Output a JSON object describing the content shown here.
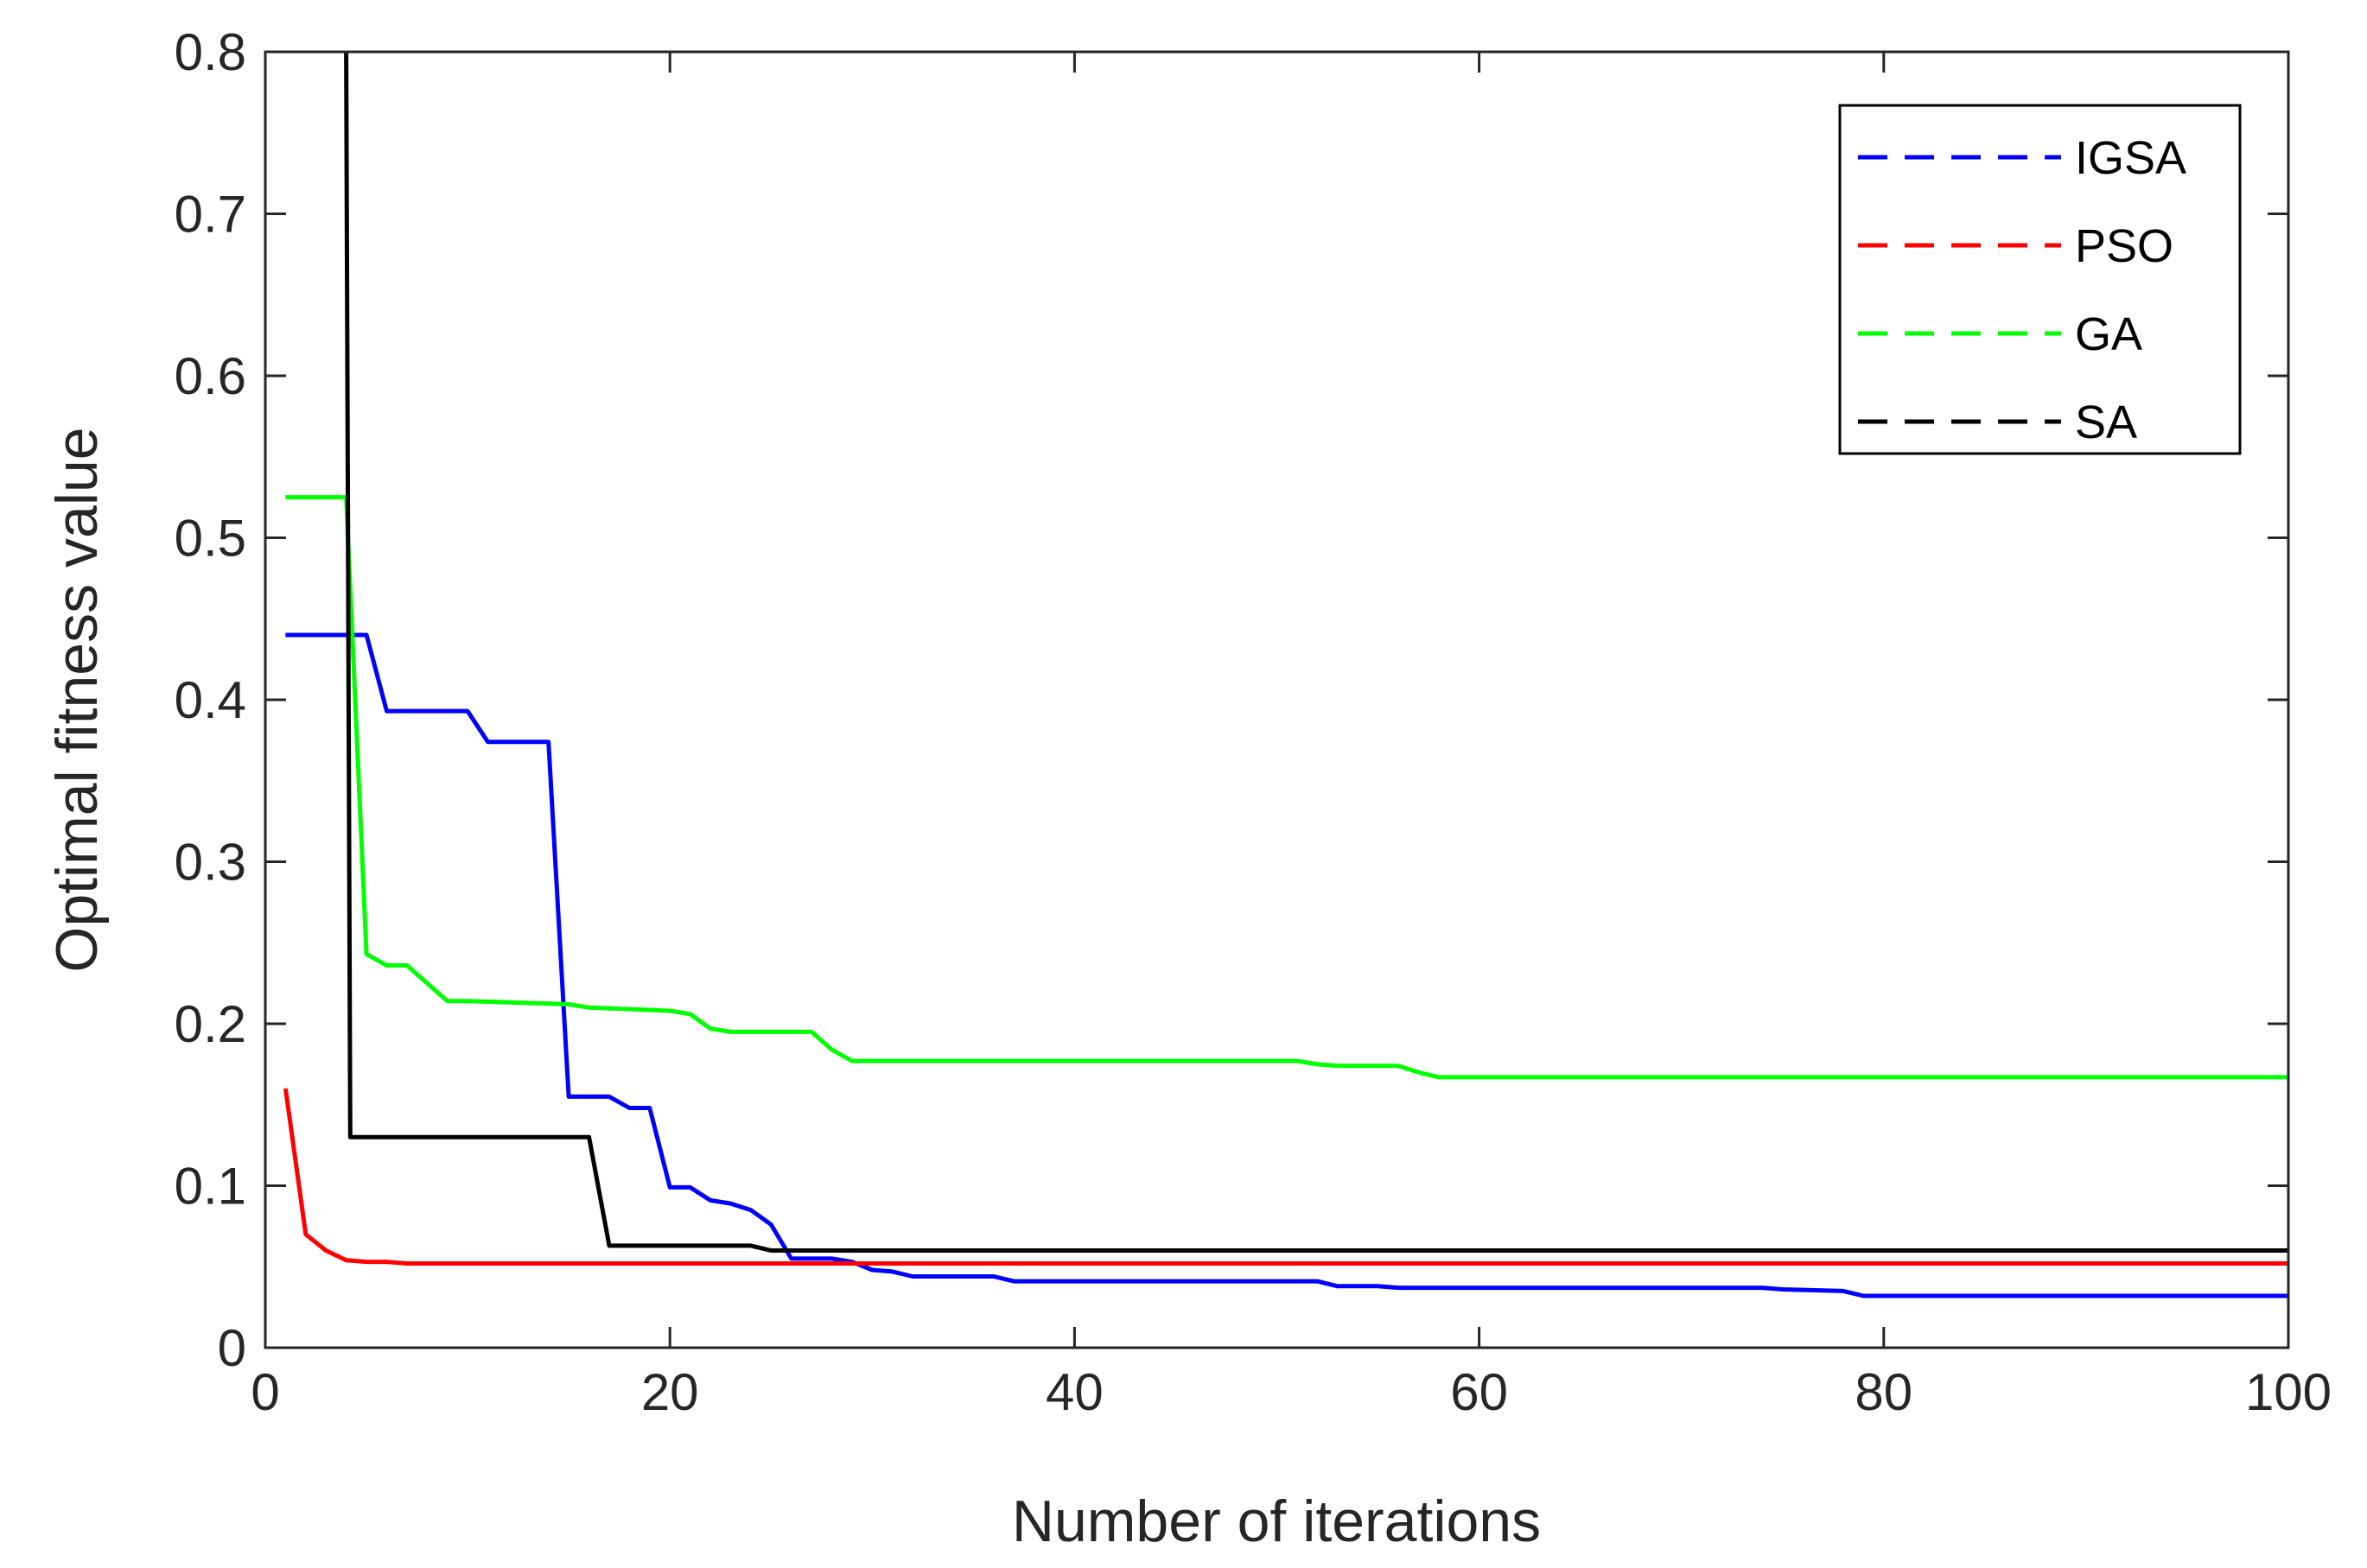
{
  "chart_data": {
    "type": "line",
    "title": "",
    "xlabel": "Number of iterations",
    "ylabel": "Optimal fitness value",
    "xlim": [
      0,
      100
    ],
    "ylim": [
      0,
      0.8
    ],
    "xticks": [
      "0",
      "20",
      "40",
      "60",
      "80",
      "100"
    ],
    "yticks": [
      "0",
      "0.1",
      "0.2",
      "0.3",
      "0.4",
      "0.5",
      "0.6",
      "0.7",
      "0.8"
    ],
    "grid": false,
    "legend_position": "top-right",
    "series": [
      {
        "name": "IGSA",
        "color": "#0000ff",
        "x": [
          1,
          4,
          5,
          6,
          9,
          10,
          11,
          12,
          14,
          15,
          16,
          17,
          18,
          19,
          20,
          21,
          22,
          23,
          24,
          25,
          26,
          27,
          28,
          29,
          30,
          31,
          32,
          36,
          37,
          52,
          53,
          55,
          56,
          74,
          75,
          78,
          79,
          100
        ],
        "y": [
          0.44,
          0.44,
          0.44,
          0.393,
          0.393,
          0.393,
          0.374,
          0.374,
          0.374,
          0.155,
          0.155,
          0.155,
          0.148,
          0.148,
          0.099,
          0.099,
          0.091,
          0.089,
          0.085,
          0.076,
          0.055,
          0.055,
          0.055,
          0.053,
          0.048,
          0.047,
          0.044,
          0.044,
          0.041,
          0.041,
          0.038,
          0.038,
          0.037,
          0.037,
          0.036,
          0.035,
          0.032,
          0.032
        ]
      },
      {
        "name": "PSO",
        "color": "#ff0000",
        "x": [
          1,
          2,
          3,
          4,
          5,
          6,
          7,
          8,
          10,
          15,
          20,
          30,
          50,
          100
        ],
        "y": [
          0.16,
          0.07,
          0.06,
          0.054,
          0.053,
          0.053,
          0.052,
          0.052,
          0.052,
          0.052,
          0.052,
          0.052,
          0.052,
          0.052
        ]
      },
      {
        "name": "GA",
        "color": "#00ff00",
        "x": [
          1,
          4,
          5,
          6,
          7,
          8,
          9,
          10,
          15,
          16,
          20,
          21,
          22,
          23,
          26,
          27,
          28,
          29,
          51,
          52,
          53,
          54,
          56,
          57,
          58,
          100
        ],
        "y": [
          0.525,
          0.525,
          0.243,
          0.236,
          0.236,
          0.225,
          0.214,
          0.214,
          0.212,
          0.21,
          0.208,
          0.206,
          0.197,
          0.195,
          0.195,
          0.195,
          0.184,
          0.177,
          0.177,
          0.175,
          0.174,
          0.174,
          0.174,
          0.17,
          0.167,
          0.167
        ]
      },
      {
        "name": "SA",
        "color": "#000000",
        "x": [
          4,
          4.2,
          15,
          16,
          17,
          24,
          25,
          26,
          100
        ],
        "y": [
          0.8,
          0.13,
          0.13,
          0.13,
          0.063,
          0.063,
          0.06,
          0.06,
          0.06
        ]
      }
    ]
  }
}
